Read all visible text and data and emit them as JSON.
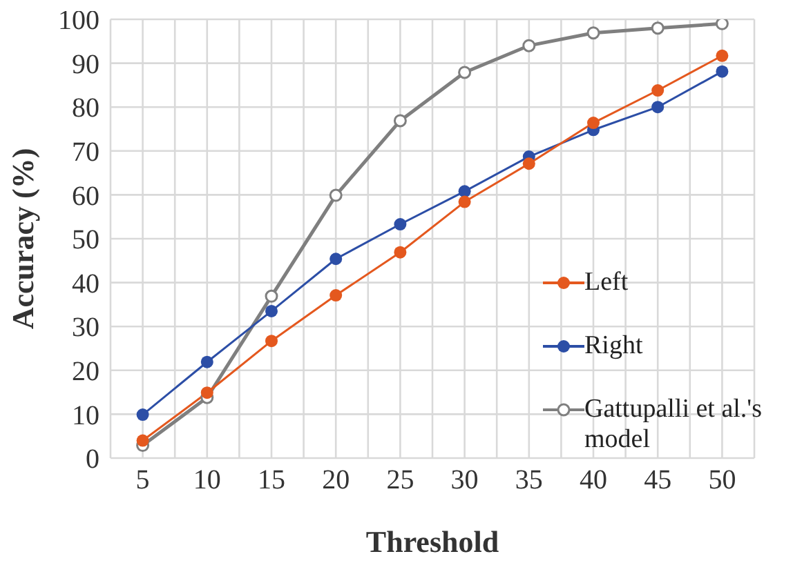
{
  "chart_data": {
    "type": "line",
    "xlabel": "Threshold",
    "ylabel": "Accuracy (%)",
    "x": [
      5,
      10,
      15,
      20,
      25,
      30,
      35,
      40,
      45,
      50
    ],
    "xlim": [
      2.5,
      52.5
    ],
    "xticks": [
      {
        "value": 2.5,
        "label": null
      },
      5,
      {
        "value": 7.5,
        "label": null
      },
      10,
      {
        "value": 12.5,
        "label": null
      },
      15,
      {
        "value": 17.5,
        "label": null
      },
      20,
      {
        "value": 22.5,
        "label": null
      },
      25,
      {
        "value": 27.5,
        "label": null
      },
      30,
      {
        "value": 32.5,
        "label": null
      },
      35,
      {
        "value": 37.5,
        "label": null
      },
      40,
      {
        "value": 42.5,
        "label": null
      },
      45,
      {
        "value": 47.5,
        "label": null
      },
      50,
      {
        "value": 52.5,
        "label": null
      }
    ],
    "ylim": [
      0,
      100
    ],
    "yticks": [
      0,
      10,
      20,
      30,
      40,
      50,
      60,
      70,
      80,
      90,
      100
    ],
    "grid": true,
    "legend": "right",
    "marker": "circle",
    "line_style": "solid",
    "series": [
      {
        "name": "Left",
        "color": "#e4581e",
        "values": [
          4.0,
          14.9,
          26.7,
          37.1,
          46.9,
          58.4,
          67.1,
          76.4,
          83.8,
          91.7
        ]
      },
      {
        "name": "Right",
        "color": "#2c4ea6",
        "values": [
          9.9,
          21.9,
          33.5,
          45.4,
          53.3,
          60.8,
          68.7,
          74.8,
          80.0,
          88.1
        ]
      },
      {
        "name": "Gattupalli et al.'s model",
        "color": "#7f7f7f",
        "marker": "open_circle",
        "values": [
          2.9,
          13.8,
          36.9,
          59.9,
          76.9,
          87.9,
          94.0,
          96.9,
          98.0,
          99.0
        ]
      }
    ]
  }
}
